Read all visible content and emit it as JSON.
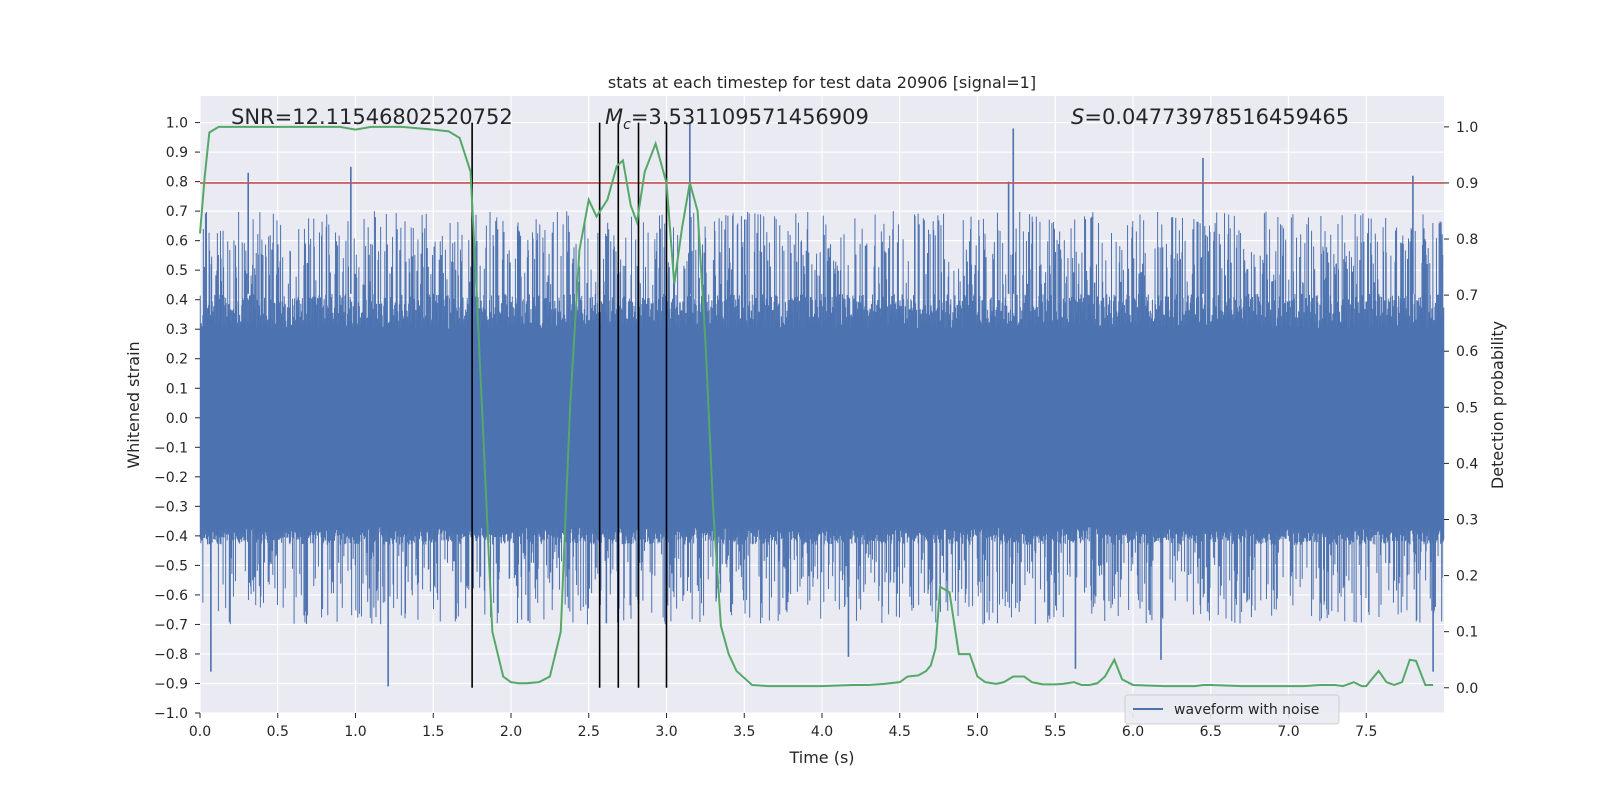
{
  "chart_data": {
    "type": "line",
    "title": "stats at each timestep for test data 20906 [signal=1]",
    "xlabel": "Time (s)",
    "ylabel": "Whitened strain",
    "y2label": "Detection probability",
    "xlim": [
      0.0,
      8.0
    ],
    "ylim": [
      -1.0,
      1.09
    ],
    "y2lim": [
      -0.045,
      1.055
    ],
    "xticks": [
      0.0,
      0.5,
      1.0,
      1.5,
      2.0,
      2.5,
      3.0,
      3.5,
      4.0,
      4.5,
      5.0,
      5.5,
      6.0,
      6.5,
      7.0,
      7.5
    ],
    "xtick_labels": [
      "0.0",
      "0.5",
      "1.0",
      "1.5",
      "2.0",
      "2.5",
      "3.0",
      "3.5",
      "4.0",
      "4.5",
      "5.0",
      "5.5",
      "6.0",
      "6.5",
      "7.0",
      "7.5"
    ],
    "yticks": [
      -1.0,
      -0.9,
      -0.8,
      -0.7,
      -0.6,
      -0.5,
      -0.4,
      -0.3,
      -0.2,
      -0.1,
      0.0,
      0.1,
      0.2,
      0.3,
      0.4,
      0.5,
      0.6,
      0.7,
      0.8,
      0.9,
      1.0
    ],
    "ytick_labels": [
      "−1.0",
      "−0.9",
      "−0.8",
      "−0.7",
      "−0.6",
      "−0.5",
      "−0.4",
      "−0.3",
      "−0.2",
      "−0.1",
      "0.0",
      "0.1",
      "0.2",
      "0.3",
      "0.4",
      "0.5",
      "0.6",
      "0.7",
      "0.8",
      "0.9",
      "1.0"
    ],
    "y2ticks": [
      0.0,
      0.1,
      0.2,
      0.3,
      0.4,
      0.5,
      0.6,
      0.7,
      0.8,
      0.9,
      1.0
    ],
    "y2tick_labels": [
      "0.0",
      "0.1",
      "0.2",
      "0.3",
      "0.4",
      "0.5",
      "0.6",
      "0.7",
      "0.8",
      "0.9",
      "1.0"
    ],
    "annotations": {
      "snr": "SNR=12.11546802520752",
      "mc_symbol": "M",
      "mc_sub": "c",
      "mc_value": "=3.531109571456909",
      "s_symbol": "S",
      "s_value": "=0.04773978516459465"
    },
    "legend": {
      "label": "waveform with noise",
      "location": "lower-right"
    },
    "threshold": {
      "axis": "y2",
      "value": 0.9,
      "color": "#c44e52"
    },
    "vertical_lines": [
      1.75,
      2.57,
      2.69,
      2.82,
      3.0
    ],
    "waveform": {
      "name": "waveform with noise",
      "color": "#4c72b0",
      "x_range": [
        0.0,
        8.0
      ],
      "body_envelope": [
        -0.35,
        0.42
      ],
      "typical_peak_range": [
        0.45,
        0.7
      ],
      "max_positive": 1.0,
      "min_negative": -0.92,
      "notable_spikes": [
        {
          "x": 3.15,
          "y": 1.0
        },
        {
          "x": 5.23,
          "y": 0.98
        },
        {
          "x": 6.45,
          "y": 0.88
        },
        {
          "x": 0.31,
          "y": 0.83
        },
        {
          "x": 0.97,
          "y": 0.85
        },
        {
          "x": 5.2,
          "y": 0.8
        },
        {
          "x": 7.8,
          "y": 0.82
        },
        {
          "x": 1.21,
          "y": -0.91
        },
        {
          "x": 0.07,
          "y": -0.86
        },
        {
          "x": 5.63,
          "y": -0.85
        },
        {
          "x": 6.18,
          "y": -0.82
        },
        {
          "x": 4.17,
          "y": -0.81
        },
        {
          "x": 7.93,
          "y": -0.86
        }
      ]
    },
    "probability_series": {
      "name": "detection probability",
      "color": "#55a868",
      "x": [
        0.0,
        0.03,
        0.06,
        0.12,
        0.2,
        0.3,
        0.5,
        0.7,
        0.9,
        1.0,
        1.1,
        1.3,
        1.5,
        1.6,
        1.67,
        1.74,
        1.78,
        1.83,
        1.88,
        1.95,
        2.0,
        2.05,
        2.1,
        2.18,
        2.25,
        2.32,
        2.38,
        2.44,
        2.5,
        2.55,
        2.62,
        2.68,
        2.72,
        2.77,
        2.81,
        2.86,
        2.93,
        3.0,
        3.05,
        3.1,
        3.15,
        3.2,
        3.25,
        3.3,
        3.35,
        3.4,
        3.45,
        3.55,
        3.65,
        3.8,
        4.0,
        4.2,
        4.3,
        4.4,
        4.5,
        4.55,
        4.62,
        4.67,
        4.7,
        4.73,
        4.76,
        4.82,
        4.88,
        4.95,
        5.0,
        5.05,
        5.12,
        5.17,
        5.23,
        5.3,
        5.35,
        5.42,
        5.5,
        5.55,
        5.62,
        5.67,
        5.72,
        5.77,
        5.82,
        5.88,
        5.93,
        6.0,
        6.2,
        6.4,
        6.45,
        6.5,
        6.7,
        6.9,
        7.1,
        7.2,
        7.3,
        7.35,
        7.42,
        7.47,
        7.5,
        7.52,
        7.58,
        7.63,
        7.68,
        7.73,
        7.78,
        7.82,
        7.88,
        7.93
      ],
      "values": [
        0.81,
        0.91,
        0.99,
        1.0,
        1.0,
        1.0,
        1.0,
        1.0,
        1.0,
        0.995,
        1.0,
        1.0,
        0.995,
        0.992,
        0.98,
        0.92,
        0.7,
        0.4,
        0.1,
        0.02,
        0.01,
        0.008,
        0.008,
        0.01,
        0.02,
        0.1,
        0.5,
        0.78,
        0.87,
        0.84,
        0.87,
        0.93,
        0.94,
        0.86,
        0.83,
        0.92,
        0.97,
        0.9,
        0.72,
        0.82,
        0.9,
        0.85,
        0.62,
        0.32,
        0.11,
        0.06,
        0.03,
        0.005,
        0.003,
        0.003,
        0.003,
        0.005,
        0.005,
        0.007,
        0.01,
        0.02,
        0.022,
        0.03,
        0.04,
        0.07,
        0.18,
        0.17,
        0.06,
        0.06,
        0.02,
        0.01,
        0.007,
        0.01,
        0.02,
        0.02,
        0.01,
        0.006,
        0.006,
        0.007,
        0.01,
        0.005,
        0.005,
        0.008,
        0.02,
        0.05,
        0.015,
        0.005,
        0.003,
        0.003,
        0.005,
        0.005,
        0.003,
        0.003,
        0.003,
        0.005,
        0.005,
        0.003,
        0.01,
        0.003,
        0.003,
        0.01,
        0.03,
        0.01,
        0.005,
        0.01,
        0.05,
        0.048,
        0.005,
        0.005
      ]
    }
  }
}
